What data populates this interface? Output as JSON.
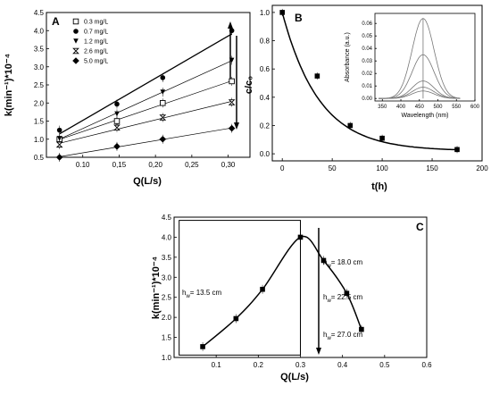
{
  "chart_data": [
    {
      "panel_label": "A",
      "type": "scatter",
      "xlabel": "Q(L/s)",
      "ylabel": "k(min⁻¹)*10⁻⁴",
      "xlim": [
        0.05,
        0.33
      ],
      "ylim": [
        0.5,
        4.5
      ],
      "xticks": [
        0.1,
        0.15,
        0.2,
        0.25,
        0.3
      ],
      "xtick_labels": [
        "0.10",
        "0,15",
        "0,20",
        "0,25",
        "0,30"
      ],
      "yticks": [
        0.5,
        1.0,
        1.5,
        2.0,
        2.5,
        3.0,
        3.5,
        4.0,
        4.5
      ],
      "ytick_labels": [
        "0.5",
        "1.0",
        "1.5",
        "2.0",
        "2.5",
        "3.0",
        "3.5",
        "4.0",
        "4.5"
      ],
      "x": [
        0.068,
        0.147,
        0.21,
        0.305
      ],
      "series": [
        {
          "name": "0.3 mg/L",
          "marker": "open-square",
          "values": [
            1.0,
            1.5,
            2.0,
            2.6
          ]
        },
        {
          "name": "0.7 mg/L",
          "marker": "filled-circle",
          "values": [
            1.25,
            1.97,
            2.7,
            4.0
          ]
        },
        {
          "name": "1.2 mg/L",
          "marker": "filled-triangle-down",
          "values": [
            1.02,
            1.7,
            2.3,
            3.18
          ]
        },
        {
          "name": "2.6 mg/L",
          "marker": "bowtie",
          "values": [
            0.85,
            1.32,
            1.6,
            2.02
          ]
        },
        {
          "name": "5.0 mg/L",
          "marker": "filled-diamond",
          "values": [
            0.5,
            0.8,
            1.0,
            1.3
          ]
        }
      ],
      "legend": "top-left"
    },
    {
      "panel_label": "B",
      "type": "scatter",
      "xlabel": "t(h)",
      "ylabel": "c/c₀",
      "xlim": [
        -10,
        200
      ],
      "ylim": [
        -0.05,
        1.05
      ],
      "xticks": [
        0,
        50,
        100,
        150,
        200
      ],
      "xtick_labels": [
        "0",
        "50",
        "100",
        "150",
        "200"
      ],
      "yticks": [
        0.0,
        0.2,
        0.4,
        0.6,
        0.8,
        1.0
      ],
      "ytick_labels": [
        "0.0",
        "0.2",
        "0.4",
        "0.6",
        "0.8",
        "1.0"
      ],
      "x": [
        0,
        35,
        68,
        100,
        175
      ],
      "values": [
        1.0,
        0.55,
        0.2,
        0.11,
        0.03
      ],
      "inset": {
        "type": "line",
        "xlabel": "Wavelength (nm)",
        "ylabel": "Absorbance (a.u.)",
        "xlim": [
          330,
          600
        ],
        "ylim": [
          -0.002,
          0.068
        ],
        "xticks": [
          350,
          400,
          450,
          500,
          550,
          600
        ],
        "xtick_labels": [
          "350",
          "400",
          "450",
          "500",
          "550",
          "600"
        ],
        "yticks": [
          0.0,
          0.01,
          0.02,
          0.03,
          0.04,
          0.05,
          0.06
        ],
        "ytick_labels": [
          "0.00",
          "0.01",
          "0.02",
          "0.03",
          "0.04",
          "0.05",
          "0.06"
        ],
        "peak_wavelength": 460,
        "peak_absorbances": [
          0.064,
          0.035,
          0.014,
          0.009,
          0.006
        ]
      }
    },
    {
      "panel_label": "C",
      "type": "scatter",
      "xlabel": "Q(L/s)",
      "ylabel": "k(min⁻¹)*10⁻⁴",
      "xlim": [
        0.0,
        0.6
      ],
      "ylim": [
        1.0,
        4.5
      ],
      "xticks": [
        0.1,
        0.2,
        0.3,
        0.4,
        0.5,
        0.6
      ],
      "xtick_labels": [
        "0.1",
        "0.2",
        "0.3",
        "0.4",
        "0.5",
        "0.6"
      ],
      "yticks": [
        1.0,
        1.5,
        2.0,
        2.5,
        3.0,
        3.5,
        4.0,
        4.5
      ],
      "ytick_labels": [
        "1.0",
        "1.5",
        "2.0",
        "2.5",
        "3.0",
        "3.5",
        "4.0",
        "4.5"
      ],
      "x": [
        0.068,
        0.147,
        0.21,
        0.3,
        0.355,
        0.41,
        0.445
      ],
      "values": [
        1.27,
        1.97,
        2.7,
        4.0,
        3.42,
        2.6,
        1.7
      ],
      "annotations": [
        {
          "base": "h",
          "sub": "w",
          "text": "= 13.5 cm"
        },
        {
          "base": "h",
          "sub": "w",
          "text": "= 18.0 cm"
        },
        {
          "base": "h",
          "sub": "w",
          "text": "= 22.5 cm"
        },
        {
          "base": "h",
          "sub": "w",
          "text": "= 27.0 cm"
        }
      ]
    }
  ]
}
